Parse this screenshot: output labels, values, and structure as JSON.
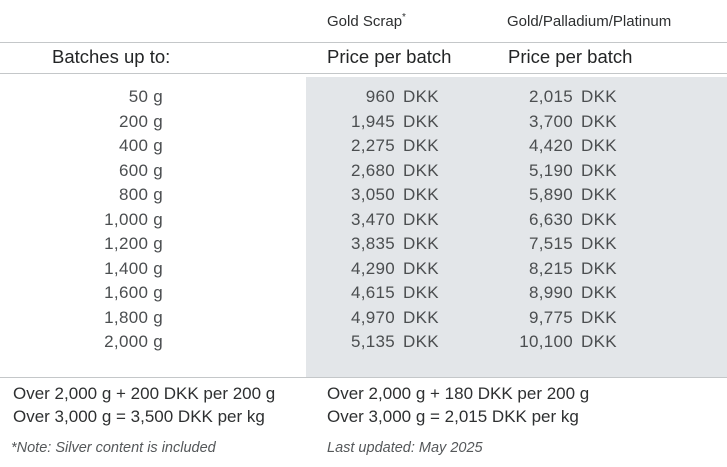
{
  "colors": {
    "panel_background": "#e3e6e9",
    "rule": "#c4c7c9",
    "header_text": "#2d2f30",
    "data_text": "#4b4e50",
    "footnote_text": "#55585a"
  },
  "header": {
    "col1_label": "Gold Scrap",
    "col1_sup": "*",
    "col2_label": "Gold/Palladium/Platinum"
  },
  "subheader": {
    "batches_label": "Batches up to:",
    "col1_price_label": "Price per batch",
    "col2_price_label": "Price per batch"
  },
  "table": {
    "rows": [
      {
        "batch": "50 g",
        "gold_scrap_price": "960",
        "gpp_price": "2,015",
        "currency": "DKK"
      },
      {
        "batch": "200 g",
        "gold_scrap_price": "1,945",
        "gpp_price": "3,700",
        "currency": "DKK"
      },
      {
        "batch": "400 g",
        "gold_scrap_price": "2,275",
        "gpp_price": "4,420",
        "currency": "DKK"
      },
      {
        "batch": "600 g",
        "gold_scrap_price": "2,680",
        "gpp_price": "5,190",
        "currency": "DKK"
      },
      {
        "batch": "800 g",
        "gold_scrap_price": "3,050",
        "gpp_price": "5,890",
        "currency": "DKK"
      },
      {
        "batch": "1,000 g",
        "gold_scrap_price": "3,470",
        "gpp_price": "6,630",
        "currency": "DKK"
      },
      {
        "batch": "1,200 g",
        "gold_scrap_price": "3,835",
        "gpp_price": "7,515",
        "currency": "DKK"
      },
      {
        "batch": "1,400 g",
        "gold_scrap_price": "4,290",
        "gpp_price": "8,215",
        "currency": "DKK"
      },
      {
        "batch": "1,600 g",
        "gold_scrap_price": "4,615",
        "gpp_price": "8,990",
        "currency": "DKK"
      },
      {
        "batch": "1,800 g",
        "gold_scrap_price": "4,970",
        "gpp_price": "9,775",
        "currency": "DKK"
      },
      {
        "batch": "2,000 g",
        "gold_scrap_price": "5,135",
        "gpp_price": "10,100",
        "currency": "DKK"
      }
    ]
  },
  "footer": {
    "gold_scrap_rule1": "Over 2,000 g + 200 DKK per 200 g",
    "gold_scrap_rule2": "Over 3,000 g = 3,500 DKK per kg",
    "gpp_rule1": "Over 2,000 g + 180 DKK per 200 g",
    "gpp_rule2": "Over 3,000 g = 2,015 DKK per kg"
  },
  "footnotes": {
    "note": "*Note: Silver content is included",
    "last_updated": "Last updated: May 2025"
  }
}
